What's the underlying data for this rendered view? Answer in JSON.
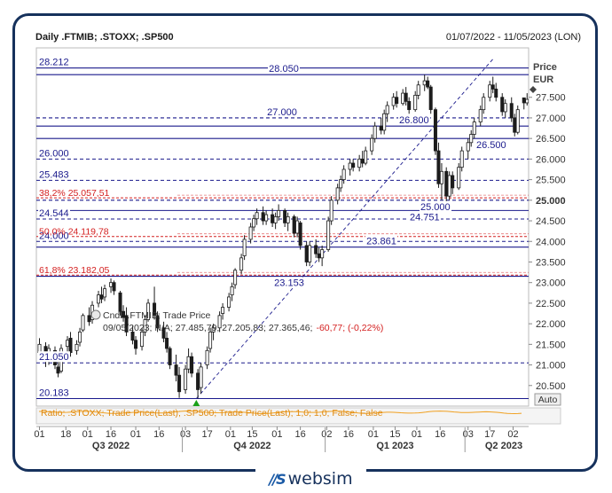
{
  "header": {
    "title": "Daily .FTMIB; .STOXX; .SP500",
    "range": "01/07/2022 - 11/05/2023 (LON)"
  },
  "axis": {
    "price_label_line1": "Price",
    "price_label_line2": "EUR",
    "auto_label": "Auto"
  },
  "tooltip": {
    "line1": "Cndl; .FTMIB; Trade Price",
    "line2_prefix": "09/05/2023; N/A; 27.485,79; 27.205,83; 27.365,46;",
    "line2_change": "-60,77; (-0,22%)"
  },
  "lower_panel": {
    "legend": "Ratio; .STOXX; Trade Price(Last); .SP500; Trade Price(Last); 1,0; 1,0; False; False"
  },
  "logo": {
    "text": "websim"
  },
  "colors": {
    "candle": "#1c1c1c",
    "level_line": "#1a1a8c",
    "fib_line": "#d42020",
    "ratio_line": "#f0a020"
  },
  "chart_data": {
    "type": "candlestick",
    "ylim": [
      20000,
      28700
    ],
    "y_ticks": [
      "20.500",
      "21.000",
      "21.500",
      "22.000",
      "22.500",
      "23.000",
      "23.500",
      "24.000",
      "24.500",
      "25.000",
      "25.500",
      "26.000",
      "26.500",
      "27.000",
      "27.500"
    ],
    "y_ticks_bold": "25.000",
    "x_ticks": [
      {
        "label": "01",
        "date": "2022-07-01"
      },
      {
        "label": "18",
        "date": "2022-07-18"
      },
      {
        "label": "01",
        "date": "2022-08-01"
      },
      {
        "label": "16",
        "date": "2022-08-16"
      },
      {
        "label": "01",
        "date": "2022-09-01"
      },
      {
        "label": "16",
        "date": "2022-09-16"
      },
      {
        "label": "03",
        "date": "2022-10-03"
      },
      {
        "label": "17",
        "date": "2022-10-17"
      },
      {
        "label": "01",
        "date": "2022-11-01"
      },
      {
        "label": "15",
        "date": "2022-11-15"
      },
      {
        "label": "01",
        "date": "2022-12-01"
      },
      {
        "label": "16",
        "date": "2022-12-16"
      },
      {
        "label": "02",
        "date": "2023-01-02"
      },
      {
        "label": "16",
        "date": "2023-01-16"
      },
      {
        "label": "01",
        "date": "2023-02-01"
      },
      {
        "label": "15",
        "date": "2023-02-15"
      },
      {
        "label": "01",
        "date": "2023-03-01"
      },
      {
        "label": "16",
        "date": "2023-03-16"
      },
      {
        "label": "03",
        "date": "2023-04-03"
      },
      {
        "label": "17",
        "date": "2023-04-17"
      },
      {
        "label": "02",
        "date": "2023-05-02"
      }
    ],
    "quarters": [
      {
        "label": "Q3 2022",
        "date": "2022-08-16"
      },
      {
        "label": "Q4 2022",
        "date": "2022-11-15"
      },
      {
        "label": "Q1 2023",
        "date": "2023-02-15"
      },
      {
        "label": "Q2 2023",
        "date": "2023-04-26"
      }
    ],
    "horizontal_levels": [
      {
        "value": 28212,
        "label": "28.212",
        "align": "left",
        "style": "solid"
      },
      {
        "value": 28050,
        "label": "28.050",
        "align": "mid",
        "style": "solid"
      },
      {
        "value": 27000,
        "label": "27.000",
        "align": "mid",
        "style": "dashed"
      },
      {
        "value": 26800,
        "label": "26.800",
        "align": "right",
        "style": "solid"
      },
      {
        "value": 26500,
        "label": "26.500",
        "align": "right",
        "style": "solid"
      },
      {
        "value": 26000,
        "label": "26.000",
        "align": "left",
        "style": "dashed"
      },
      {
        "value": 25483,
        "label": "25.483",
        "align": "left",
        "style": "dashed"
      },
      {
        "value": 25000,
        "label": "25.000",
        "align": "right",
        "style": "dashed"
      },
      {
        "value": 24751,
        "label": "24.751",
        "align": "right",
        "style": "solid"
      },
      {
        "value": 24544,
        "label": "24.544",
        "align": "left",
        "style": "dashed"
      },
      {
        "value": 24000,
        "label": "24.000",
        "align": "left",
        "style": "dashed"
      },
      {
        "value": 23861,
        "label": "23.861",
        "align": "mid",
        "style": "solid"
      },
      {
        "value": 23153,
        "label": "23.153",
        "align": "mid",
        "style": "solid"
      },
      {
        "value": 21050,
        "label": "21.050",
        "align": "left",
        "style": "dashed"
      },
      {
        "value": 20183,
        "label": "20.183",
        "align": "left",
        "style": "solid"
      }
    ],
    "fibonacci_levels": [
      {
        "value": 25057.51,
        "label": "38,2% 25.057,51"
      },
      {
        "value": 24119.78,
        "label": "50,0% 24.119,78"
      },
      {
        "value": 23182.05,
        "label": "61,8% 23.182,05"
      }
    ],
    "trendline": {
      "from": {
        "date": "2022-10-10",
        "value": 20183
      },
      "to": {
        "date": "2023-04-14",
        "value": 28212
      }
    },
    "current_price": 27365,
    "candles": [
      {
        "d": "2022-07-01",
        "o": 21300,
        "h": 21650,
        "l": 21150,
        "c": 21500
      },
      {
        "d": "2022-07-05",
        "o": 21450,
        "h": 21550,
        "l": 20950,
        "c": 21100
      },
      {
        "d": "2022-07-07",
        "o": 21150,
        "h": 21500,
        "l": 21000,
        "c": 21400
      },
      {
        "d": "2022-07-11",
        "o": 21350,
        "h": 21450,
        "l": 20900,
        "c": 21000
      },
      {
        "d": "2022-07-13",
        "o": 20950,
        "h": 21200,
        "l": 20700,
        "c": 20800
      },
      {
        "d": "2022-07-15",
        "o": 20850,
        "h": 21500,
        "l": 20800,
        "c": 21400
      },
      {
        "d": "2022-07-19",
        "o": 21450,
        "h": 21700,
        "l": 21300,
        "c": 21600
      },
      {
        "d": "2022-07-21",
        "o": 21650,
        "h": 21800,
        "l": 21200,
        "c": 21300
      },
      {
        "d": "2022-07-25",
        "o": 21350,
        "h": 21600,
        "l": 21250,
        "c": 21500
      },
      {
        "d": "2022-07-27",
        "o": 21550,
        "h": 21900,
        "l": 21450,
        "c": 21800
      },
      {
        "d": "2022-07-29",
        "o": 21850,
        "h": 22250,
        "l": 21800,
        "c": 22200
      },
      {
        "d": "2022-08-02",
        "o": 22200,
        "h": 22400,
        "l": 21950,
        "c": 22050
      },
      {
        "d": "2022-08-04",
        "o": 22100,
        "h": 22550,
        "l": 22000,
        "c": 22450
      },
      {
        "d": "2022-08-08",
        "o": 22500,
        "h": 22800,
        "l": 22400,
        "c": 22700
      },
      {
        "d": "2022-08-10",
        "o": 22700,
        "h": 22900,
        "l": 22500,
        "c": 22600
      },
      {
        "d": "2022-08-12",
        "o": 22650,
        "h": 22950,
        "l": 22550,
        "c": 22850
      },
      {
        "d": "2022-08-16",
        "o": 22900,
        "h": 23100,
        "l": 22750,
        "c": 23000
      },
      {
        "d": "2022-08-18",
        "o": 23000,
        "h": 23050,
        "l": 22700,
        "c": 22800
      },
      {
        "d": "2022-08-22",
        "o": 22750,
        "h": 22800,
        "l": 22200,
        "c": 22300
      },
      {
        "d": "2022-08-24",
        "o": 22300,
        "h": 22450,
        "l": 22050,
        "c": 22150
      },
      {
        "d": "2022-08-26",
        "o": 22200,
        "h": 22400,
        "l": 21700,
        "c": 21800
      },
      {
        "d": "2022-08-30",
        "o": 21800,
        "h": 21950,
        "l": 21500,
        "c": 21600
      },
      {
        "d": "2022-09-01",
        "o": 21600,
        "h": 21700,
        "l": 21250,
        "c": 21400
      },
      {
        "d": "2022-09-05",
        "o": 21450,
        "h": 21900,
        "l": 21350,
        "c": 21800
      },
      {
        "d": "2022-09-07",
        "o": 21800,
        "h": 22200,
        "l": 21700,
        "c": 22100
      },
      {
        "d": "2022-09-09",
        "o": 22100,
        "h": 22600,
        "l": 22050,
        "c": 22500
      },
      {
        "d": "2022-09-13",
        "o": 22500,
        "h": 22900,
        "l": 22100,
        "c": 22200
      },
      {
        "d": "2022-09-15",
        "o": 22200,
        "h": 22300,
        "l": 21800,
        "c": 21900
      },
      {
        "d": "2022-09-19",
        "o": 21900,
        "h": 22050,
        "l": 21550,
        "c": 21650
      },
      {
        "d": "2022-09-21",
        "o": 21650,
        "h": 21800,
        "l": 21300,
        "c": 21400
      },
      {
        "d": "2022-09-23",
        "o": 21400,
        "h": 21450,
        "l": 20900,
        "c": 21000
      },
      {
        "d": "2022-09-27",
        "o": 21000,
        "h": 21250,
        "l": 20600,
        "c": 20750
      },
      {
        "d": "2022-09-29",
        "o": 20750,
        "h": 20950,
        "l": 20200,
        "c": 20350
      },
      {
        "d": "2022-10-03",
        "o": 20400,
        "h": 21000,
        "l": 20300,
        "c": 20900
      },
      {
        "d": "2022-10-05",
        "o": 20900,
        "h": 21400,
        "l": 20800,
        "c": 21200
      },
      {
        "d": "2022-10-07",
        "o": 21200,
        "h": 21300,
        "l": 20700,
        "c": 20800
      },
      {
        "d": "2022-10-11",
        "o": 20800,
        "h": 20900,
        "l": 20183,
        "c": 20400
      },
      {
        "d": "2022-10-13",
        "o": 20450,
        "h": 21050,
        "l": 20300,
        "c": 20950
      },
      {
        "d": "2022-10-17",
        "o": 21000,
        "h": 21450,
        "l": 20900,
        "c": 21350
      },
      {
        "d": "2022-10-19",
        "o": 21400,
        "h": 21900,
        "l": 21300,
        "c": 21800
      },
      {
        "d": "2022-10-21",
        "o": 21800,
        "h": 22000,
        "l": 21600,
        "c": 21900
      },
      {
        "d": "2022-10-25",
        "o": 21900,
        "h": 22300,
        "l": 21800,
        "c": 22200
      },
      {
        "d": "2022-10-27",
        "o": 22250,
        "h": 22500,
        "l": 22100,
        "c": 22400
      },
      {
        "d": "2022-10-31",
        "o": 22400,
        "h": 22750,
        "l": 22300,
        "c": 22650
      },
      {
        "d": "2022-11-02",
        "o": 22700,
        "h": 23000,
        "l": 22550,
        "c": 22900
      },
      {
        "d": "2022-11-04",
        "o": 22950,
        "h": 23350,
        "l": 22850,
        "c": 23300
      },
      {
        "d": "2022-11-08",
        "o": 23300,
        "h": 23700,
        "l": 23200,
        "c": 23600
      },
      {
        "d": "2022-11-10",
        "o": 23650,
        "h": 24150,
        "l": 23550,
        "c": 24050
      },
      {
        "d": "2022-11-14",
        "o": 24050,
        "h": 24450,
        "l": 23950,
        "c": 24350
      },
      {
        "d": "2022-11-16",
        "o": 24350,
        "h": 24650,
        "l": 24250,
        "c": 24550
      },
      {
        "d": "2022-11-18",
        "o": 24550,
        "h": 24800,
        "l": 24400,
        "c": 24700
      },
      {
        "d": "2022-11-22",
        "o": 24700,
        "h": 24850,
        "l": 24400,
        "c": 24500
      },
      {
        "d": "2022-11-24",
        "o": 24500,
        "h": 24750,
        "l": 24400,
        "c": 24650
      },
      {
        "d": "2022-11-28",
        "o": 24650,
        "h": 24800,
        "l": 24350,
        "c": 24450
      },
      {
        "d": "2022-11-30",
        "o": 24450,
        "h": 24700,
        "l": 24300,
        "c": 24600
      },
      {
        "d": "2022-12-02",
        "o": 24600,
        "h": 24900,
        "l": 24500,
        "c": 24750
      },
      {
        "d": "2022-12-06",
        "o": 24750,
        "h": 24800,
        "l": 24350,
        "c": 24450
      },
      {
        "d": "2022-12-08",
        "o": 24450,
        "h": 24700,
        "l": 24250,
        "c": 24600
      },
      {
        "d": "2022-12-12",
        "o": 24600,
        "h": 24650,
        "l": 24100,
        "c": 24200
      },
      {
        "d": "2022-12-14",
        "o": 24200,
        "h": 24600,
        "l": 24100,
        "c": 24500
      },
      {
        "d": "2022-12-16",
        "o": 24450,
        "h": 24500,
        "l": 23800,
        "c": 23900
      },
      {
        "d": "2022-12-20",
        "o": 23900,
        "h": 24000,
        "l": 23400,
        "c": 23500
      },
      {
        "d": "2022-12-22",
        "o": 23500,
        "h": 24000,
        "l": 23400,
        "c": 23900
      },
      {
        "d": "2022-12-26",
        "o": 23900,
        "h": 24050,
        "l": 23600,
        "c": 23700
      },
      {
        "d": "2022-12-28",
        "o": 23700,
        "h": 23850,
        "l": 23500,
        "c": 23600
      },
      {
        "d": "2022-12-30",
        "o": 23600,
        "h": 23900,
        "l": 23400,
        "c": 23800
      },
      {
        "d": "2023-01-03",
        "o": 23800,
        "h": 24600,
        "l": 23750,
        "c": 24500
      },
      {
        "d": "2023-01-05",
        "o": 24500,
        "h": 25100,
        "l": 24400,
        "c": 25000
      },
      {
        "d": "2023-01-09",
        "o": 25000,
        "h": 25400,
        "l": 24900,
        "c": 25300
      },
      {
        "d": "2023-01-11",
        "o": 25300,
        "h": 25600,
        "l": 25200,
        "c": 25500
      },
      {
        "d": "2023-01-13",
        "o": 25500,
        "h": 25850,
        "l": 25400,
        "c": 25750
      },
      {
        "d": "2023-01-17",
        "o": 25750,
        "h": 26000,
        "l": 25600,
        "c": 25900
      },
      {
        "d": "2023-01-19",
        "o": 25900,
        "h": 26000,
        "l": 25700,
        "c": 25800
      },
      {
        "d": "2023-01-23",
        "o": 25800,
        "h": 26100,
        "l": 25700,
        "c": 26000
      },
      {
        "d": "2023-01-25",
        "o": 26000,
        "h": 26200,
        "l": 25800,
        "c": 25900
      },
      {
        "d": "2023-01-27",
        "o": 25900,
        "h": 26300,
        "l": 25850,
        "c": 26200
      },
      {
        "d": "2023-01-31",
        "o": 26200,
        "h": 26600,
        "l": 26100,
        "c": 26500
      },
      {
        "d": "2023-02-02",
        "o": 26500,
        "h": 26900,
        "l": 26400,
        "c": 26800
      },
      {
        "d": "2023-02-06",
        "o": 26800,
        "h": 27000,
        "l": 26600,
        "c": 26700
      },
      {
        "d": "2023-02-08",
        "o": 26700,
        "h": 27200,
        "l": 26600,
        "c": 27100
      },
      {
        "d": "2023-02-10",
        "o": 27100,
        "h": 27400,
        "l": 26900,
        "c": 27300
      },
      {
        "d": "2023-02-14",
        "o": 27300,
        "h": 27600,
        "l": 27200,
        "c": 27500
      },
      {
        "d": "2023-02-16",
        "o": 27500,
        "h": 27650,
        "l": 27250,
        "c": 27350
      },
      {
        "d": "2023-02-20",
        "o": 27350,
        "h": 27700,
        "l": 27300,
        "c": 27600
      },
      {
        "d": "2023-02-22",
        "o": 27600,
        "h": 27750,
        "l": 27300,
        "c": 27400
      },
      {
        "d": "2023-02-24",
        "o": 27400,
        "h": 27500,
        "l": 27100,
        "c": 27200
      },
      {
        "d": "2023-02-28",
        "o": 27200,
        "h": 27650,
        "l": 27150,
        "c": 27550
      },
      {
        "d": "2023-03-02",
        "o": 27550,
        "h": 27900,
        "l": 27450,
        "c": 27800
      },
      {
        "d": "2023-03-06",
        "o": 27800,
        "h": 28050,
        "l": 27650,
        "c": 27900
      },
      {
        "d": "2023-03-08",
        "o": 27900,
        "h": 28000,
        "l": 27700,
        "c": 27750
      },
      {
        "d": "2023-03-10",
        "o": 27750,
        "h": 27800,
        "l": 27100,
        "c": 27200
      },
      {
        "d": "2023-03-13",
        "o": 27200,
        "h": 27250,
        "l": 26100,
        "c": 26200
      },
      {
        "d": "2023-03-15",
        "o": 26200,
        "h": 26400,
        "l": 25300,
        "c": 25400
      },
      {
        "d": "2023-03-17",
        "o": 25400,
        "h": 25900,
        "l": 25000,
        "c": 25700
      },
      {
        "d": "2023-03-20",
        "o": 25700,
        "h": 25800,
        "l": 24751,
        "c": 25100
      },
      {
        "d": "2023-03-22",
        "o": 25100,
        "h": 25700,
        "l": 25000,
        "c": 25600
      },
      {
        "d": "2023-03-24",
        "o": 25600,
        "h": 25700,
        "l": 25150,
        "c": 25300
      },
      {
        "d": "2023-03-28",
        "o": 25300,
        "h": 25900,
        "l": 25250,
        "c": 25800
      },
      {
        "d": "2023-03-30",
        "o": 25800,
        "h": 26300,
        "l": 25700,
        "c": 26200
      },
      {
        "d": "2023-04-03",
        "o": 26200,
        "h": 26500,
        "l": 26000,
        "c": 26400
      },
      {
        "d": "2023-04-05",
        "o": 26400,
        "h": 26700,
        "l": 26300,
        "c": 26600
      },
      {
        "d": "2023-04-07",
        "o": 26600,
        "h": 27000,
        "l": 26500,
        "c": 26900
      },
      {
        "d": "2023-04-11",
        "o": 26900,
        "h": 27300,
        "l": 26800,
        "c": 27200
      },
      {
        "d": "2023-04-13",
        "o": 27200,
        "h": 27600,
        "l": 27100,
        "c": 27500
      },
      {
        "d": "2023-04-17",
        "o": 27500,
        "h": 27900,
        "l": 27400,
        "c": 27800
      },
      {
        "d": "2023-04-19",
        "o": 27800,
        "h": 28000,
        "l": 27600,
        "c": 27700
      },
      {
        "d": "2023-04-21",
        "o": 27700,
        "h": 27850,
        "l": 27400,
        "c": 27500
      },
      {
        "d": "2023-04-25",
        "o": 27500,
        "h": 27600,
        "l": 27050,
        "c": 27150
      },
      {
        "d": "2023-04-27",
        "o": 27150,
        "h": 27450,
        "l": 27000,
        "c": 27350
      },
      {
        "d": "2023-05-01",
        "o": 27350,
        "h": 27500,
        "l": 26900,
        "c": 27000
      },
      {
        "d": "2023-05-03",
        "o": 27000,
        "h": 27100,
        "l": 26550,
        "c": 26650
      },
      {
        "d": "2023-05-05",
        "o": 26650,
        "h": 27300,
        "l": 26600,
        "c": 27200
      },
      {
        "d": "2023-05-09",
        "o": 27486,
        "h": 27486,
        "l": 27206,
        "c": 27365
      },
      {
        "d": "2023-05-11",
        "o": 27365,
        "h": 27600,
        "l": 27300,
        "c": 27450
      }
    ]
  }
}
